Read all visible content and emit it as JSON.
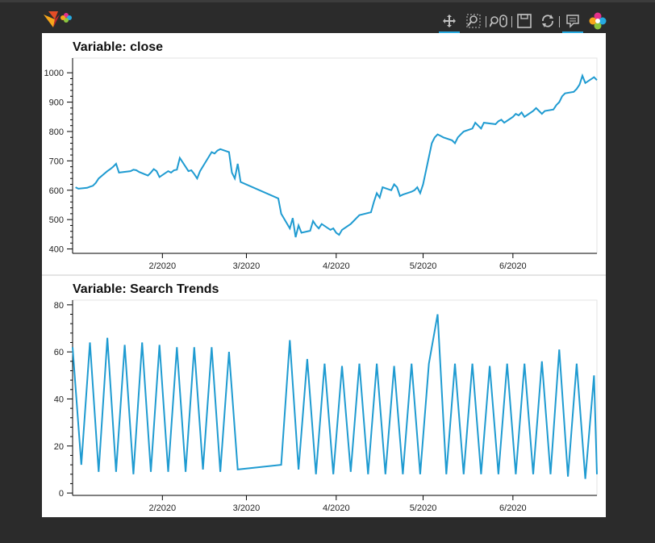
{
  "app": {
    "logo_name": "bokeh-logo-icon",
    "toolbar": [
      {
        "name": "pan-tool-icon",
        "active": true
      },
      {
        "name": "box-zoom-tool-icon",
        "active": false
      },
      {
        "name": "wheel-zoom-tool-icon",
        "active": false
      },
      {
        "name": "save-tool-icon",
        "active": false
      },
      {
        "name": "reset-tool-icon",
        "active": false
      },
      {
        "name": "hover-tool-icon",
        "active": true
      },
      {
        "name": "bokeh-logo-icon",
        "active": false
      }
    ],
    "colors": {
      "background": "#2b2b2b",
      "panel": "#ffffff",
      "line": "#1f9bd1",
      "accent": "#26aae1"
    }
  },
  "x_ticks": [
    "2/2020",
    "3/2020",
    "4/2020",
    "5/2020",
    "6/2020"
  ],
  "chart_data": [
    {
      "type": "line",
      "title": "Variable: close",
      "xlabel": "",
      "ylabel": "",
      "ylim": [
        385,
        1050
      ],
      "yticks": [
        400,
        500,
        600,
        700,
        800,
        900,
        1000
      ],
      "grid": false,
      "x": [
        "2020-01-02",
        "2020-01-03",
        "2020-01-06",
        "2020-01-07",
        "2020-01-08",
        "2020-01-09",
        "2020-01-10",
        "2020-01-13",
        "2020-01-14",
        "2020-01-15",
        "2020-01-16",
        "2020-01-17",
        "2020-01-21",
        "2020-01-22",
        "2020-01-23",
        "2020-01-24",
        "2020-01-27",
        "2020-01-28",
        "2020-01-29",
        "2020-01-30",
        "2020-01-31",
        "2020-02-03",
        "2020-02-04",
        "2020-02-05",
        "2020-02-06",
        "2020-02-07",
        "2020-02-10",
        "2020-02-11",
        "2020-02-12",
        "2020-02-13",
        "2020-02-14",
        "2020-02-18",
        "2020-02-19",
        "2020-02-20",
        "2020-02-21",
        "2020-02-24",
        "2020-02-25",
        "2020-02-26",
        "2020-02-27",
        "2020-02-28",
        "2020-03-12",
        "2020-03-13",
        "2020-03-16",
        "2020-03-17",
        "2020-03-18",
        "2020-03-19",
        "2020-03-20",
        "2020-03-23",
        "2020-03-24",
        "2020-03-25",
        "2020-03-26",
        "2020-03-27",
        "2020-03-30",
        "2020-03-31",
        "2020-04-01",
        "2020-04-02",
        "2020-04-03",
        "2020-04-06",
        "2020-04-07",
        "2020-04-08",
        "2020-04-09",
        "2020-04-13",
        "2020-04-14",
        "2020-04-15",
        "2020-04-16",
        "2020-04-17",
        "2020-04-20",
        "2020-04-21",
        "2020-04-22",
        "2020-04-23",
        "2020-04-24",
        "2020-04-27",
        "2020-04-28",
        "2020-04-29",
        "2020-04-30",
        "2020-05-01",
        "2020-05-04",
        "2020-05-05",
        "2020-05-06",
        "2020-05-07",
        "2020-05-08",
        "2020-05-11",
        "2020-05-12",
        "2020-05-13",
        "2020-05-14",
        "2020-05-15",
        "2020-05-18",
        "2020-05-19",
        "2020-05-20",
        "2020-05-21",
        "2020-05-22",
        "2020-05-26",
        "2020-05-27",
        "2020-05-28",
        "2020-05-29",
        "2020-06-01",
        "2020-06-02",
        "2020-06-03",
        "2020-06-04",
        "2020-06-05",
        "2020-06-08",
        "2020-06-09",
        "2020-06-10",
        "2020-06-11",
        "2020-06-12",
        "2020-06-15",
        "2020-06-16",
        "2020-06-17",
        "2020-06-18",
        "2020-06-19",
        "2020-06-22",
        "2020-06-23",
        "2020-06-24",
        "2020-06-25",
        "2020-06-26",
        "2020-06-29",
        "2020-06-30"
      ],
      "values": [
        610,
        605,
        608,
        612,
        615,
        625,
        640,
        665,
        672,
        680,
        690,
        660,
        665,
        670,
        668,
        662,
        650,
        660,
        672,
        665,
        645,
        665,
        660,
        668,
        670,
        710,
        665,
        668,
        655,
        640,
        665,
        730,
        725,
        735,
        740,
        730,
        660,
        640,
        690,
        628,
        572,
        520,
        470,
        505,
        440,
        480,
        455,
        462,
        495,
        480,
        470,
        485,
        465,
        470,
        455,
        448,
        465,
        485,
        495,
        505,
        515,
        525,
        560,
        590,
        575,
        610,
        600,
        620,
        610,
        580,
        585,
        595,
        600,
        610,
        590,
        620,
        760,
        780,
        790,
        785,
        780,
        770,
        760,
        780,
        790,
        800,
        810,
        830,
        820,
        810,
        830,
        825,
        835,
        840,
        830,
        850,
        860,
        855,
        865,
        850,
        870,
        880,
        870,
        860,
        870,
        875,
        890,
        900,
        920,
        930,
        935,
        945,
        960,
        990,
        965,
        985,
        975
      ]
    },
    {
      "type": "line",
      "title": "Variable: Search Trends",
      "xlabel": "",
      "ylabel": "",
      "ylim": [
        -1,
        82
      ],
      "yticks": [
        0,
        20,
        40,
        60,
        80
      ],
      "grid": false,
      "x": [
        "2020-01-01",
        "2020-01-04",
        "2020-01-07",
        "2020-01-10",
        "2020-01-13",
        "2020-01-16",
        "2020-01-19",
        "2020-01-22",
        "2020-01-25",
        "2020-01-28",
        "2020-01-31",
        "2020-02-03",
        "2020-02-06",
        "2020-02-09",
        "2020-02-12",
        "2020-02-15",
        "2020-02-18",
        "2020-02-21",
        "2020-02-24",
        "2020-02-27",
        "2020-03-13",
        "2020-03-16",
        "2020-03-19",
        "2020-03-22",
        "2020-03-25",
        "2020-03-28",
        "2020-03-31",
        "2020-04-03",
        "2020-04-06",
        "2020-04-09",
        "2020-04-12",
        "2020-04-15",
        "2020-04-18",
        "2020-04-21",
        "2020-04-24",
        "2020-04-27",
        "2020-04-30",
        "2020-05-03",
        "2020-05-06",
        "2020-05-09",
        "2020-05-12",
        "2020-05-15",
        "2020-05-18",
        "2020-05-21",
        "2020-05-24",
        "2020-05-27",
        "2020-05-30",
        "2020-06-02",
        "2020-06-05",
        "2020-06-08",
        "2020-06-11",
        "2020-06-14",
        "2020-06-17",
        "2020-06-20",
        "2020-06-23",
        "2020-06-26",
        "2020-06-29",
        "2020-06-30"
      ],
      "values": [
        62,
        12,
        64,
        9,
        66,
        9,
        63,
        8,
        64,
        9,
        63,
        9,
        62,
        9,
        62,
        10,
        62,
        9,
        60,
        10,
        12,
        65,
        10,
        57,
        8,
        55,
        8,
        54,
        9,
        55,
        8,
        55,
        8,
        54,
        8,
        55,
        8,
        55,
        76,
        8,
        55,
        8,
        55,
        8,
        54,
        8,
        55,
        8,
        55,
        8,
        56,
        8,
        61,
        7,
        55,
        6,
        50,
        8
      ]
    }
  ]
}
